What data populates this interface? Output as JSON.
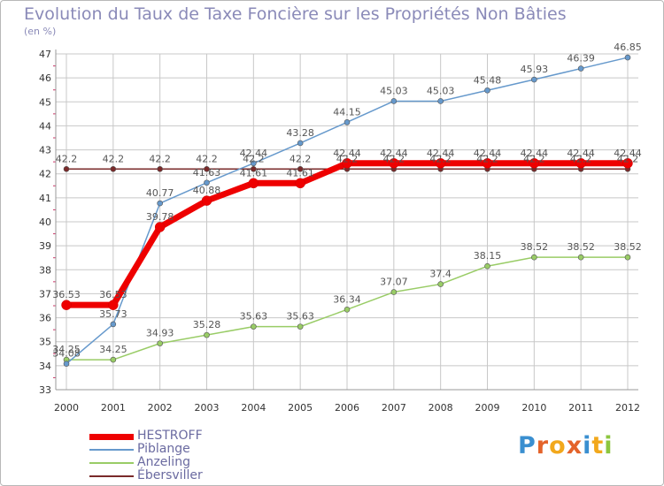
{
  "title": "Evolution du Taux de Taxe Foncière sur les Propriétés Non Bâties",
  "unit": "(en %)",
  "logo": {
    "letters": [
      "P",
      "r",
      "o",
      "x",
      "i",
      "t",
      "i"
    ]
  },
  "colors": {
    "grid": "#c8c8c8",
    "axis_text": "#333333",
    "label_text": "#555555",
    "tick_mark": "#cc3366"
  },
  "chart_data": {
    "type": "line",
    "title": "Evolution du Taux de Taxe Foncière sur les Propriétés Non Bâties",
    "ylabel": "(en %)",
    "xlabel": "",
    "x": [
      "2000",
      "2001",
      "2002",
      "2003",
      "2004",
      "2005",
      "2006",
      "2007",
      "2008",
      "2009",
      "2010",
      "2011",
      "2012"
    ],
    "ylim": [
      33,
      47
    ],
    "yticks": [
      "33",
      "34",
      "35",
      "36",
      "37",
      "38",
      "39",
      "40",
      "41",
      "42",
      "43",
      "44",
      "45",
      "46",
      "47"
    ],
    "grid": true,
    "legend_position": "bottom-left",
    "series": [
      {
        "name": "Ébersviller",
        "color": "#7a2a2a",
        "values": [
          42.2,
          42.2,
          42.2,
          42.2,
          42.2,
          42.2,
          42.2,
          42.2,
          42.2,
          42.2,
          42.2,
          42.2,
          42.2
        ],
        "labels": [
          "42.2",
          "42.2",
          "42.2",
          "42.2",
          "42.2",
          "42.2",
          "42.2",
          "42.2",
          "42.2",
          "42.2",
          "42.2",
          "42.2",
          "42.2"
        ]
      },
      {
        "name": "Anzeling",
        "color": "#99cc66",
        "values": [
          34.25,
          34.25,
          34.93,
          35.28,
          35.63,
          35.63,
          36.34,
          37.07,
          37.4,
          38.15,
          38.52,
          38.52,
          38.52
        ],
        "labels": [
          "34.25",
          "34.25",
          "34.93",
          "35.28",
          "35.63",
          "35.63",
          "36.34",
          "37.07",
          "37.4",
          "38.15",
          "38.52",
          "38.52",
          "38.52"
        ]
      },
      {
        "name": "Piblange",
        "color": "#6699cc",
        "values": [
          34.08,
          35.73,
          40.77,
          41.63,
          42.44,
          43.28,
          44.15,
          45.03,
          45.03,
          45.48,
          45.93,
          46.39,
          46.85
        ],
        "labels": [
          "34.08",
          "35.73",
          "40.77",
          "41.63",
          "42.44",
          "43.28",
          "44.15",
          "45.03",
          "45.03",
          "45.48",
          "45.93",
          "46.39",
          "46.85"
        ]
      },
      {
        "name": "HESTROFF",
        "color": "#ee0000",
        "values": [
          36.53,
          36.53,
          39.78,
          40.88,
          41.61,
          41.61,
          42.44,
          42.44,
          42.44,
          42.44,
          42.44,
          42.44,
          42.44
        ],
        "labels": [
          "36.53",
          "36.53",
          "39.78",
          "40.88",
          "41.61",
          "41.61",
          "42.44",
          "42.44",
          "42.44",
          "42.44",
          "42.44",
          "42.44",
          "42.44"
        ]
      }
    ],
    "legend": [
      "HESTROFF",
      "Piblange",
      "Anzeling",
      "Ébersviller"
    ]
  }
}
